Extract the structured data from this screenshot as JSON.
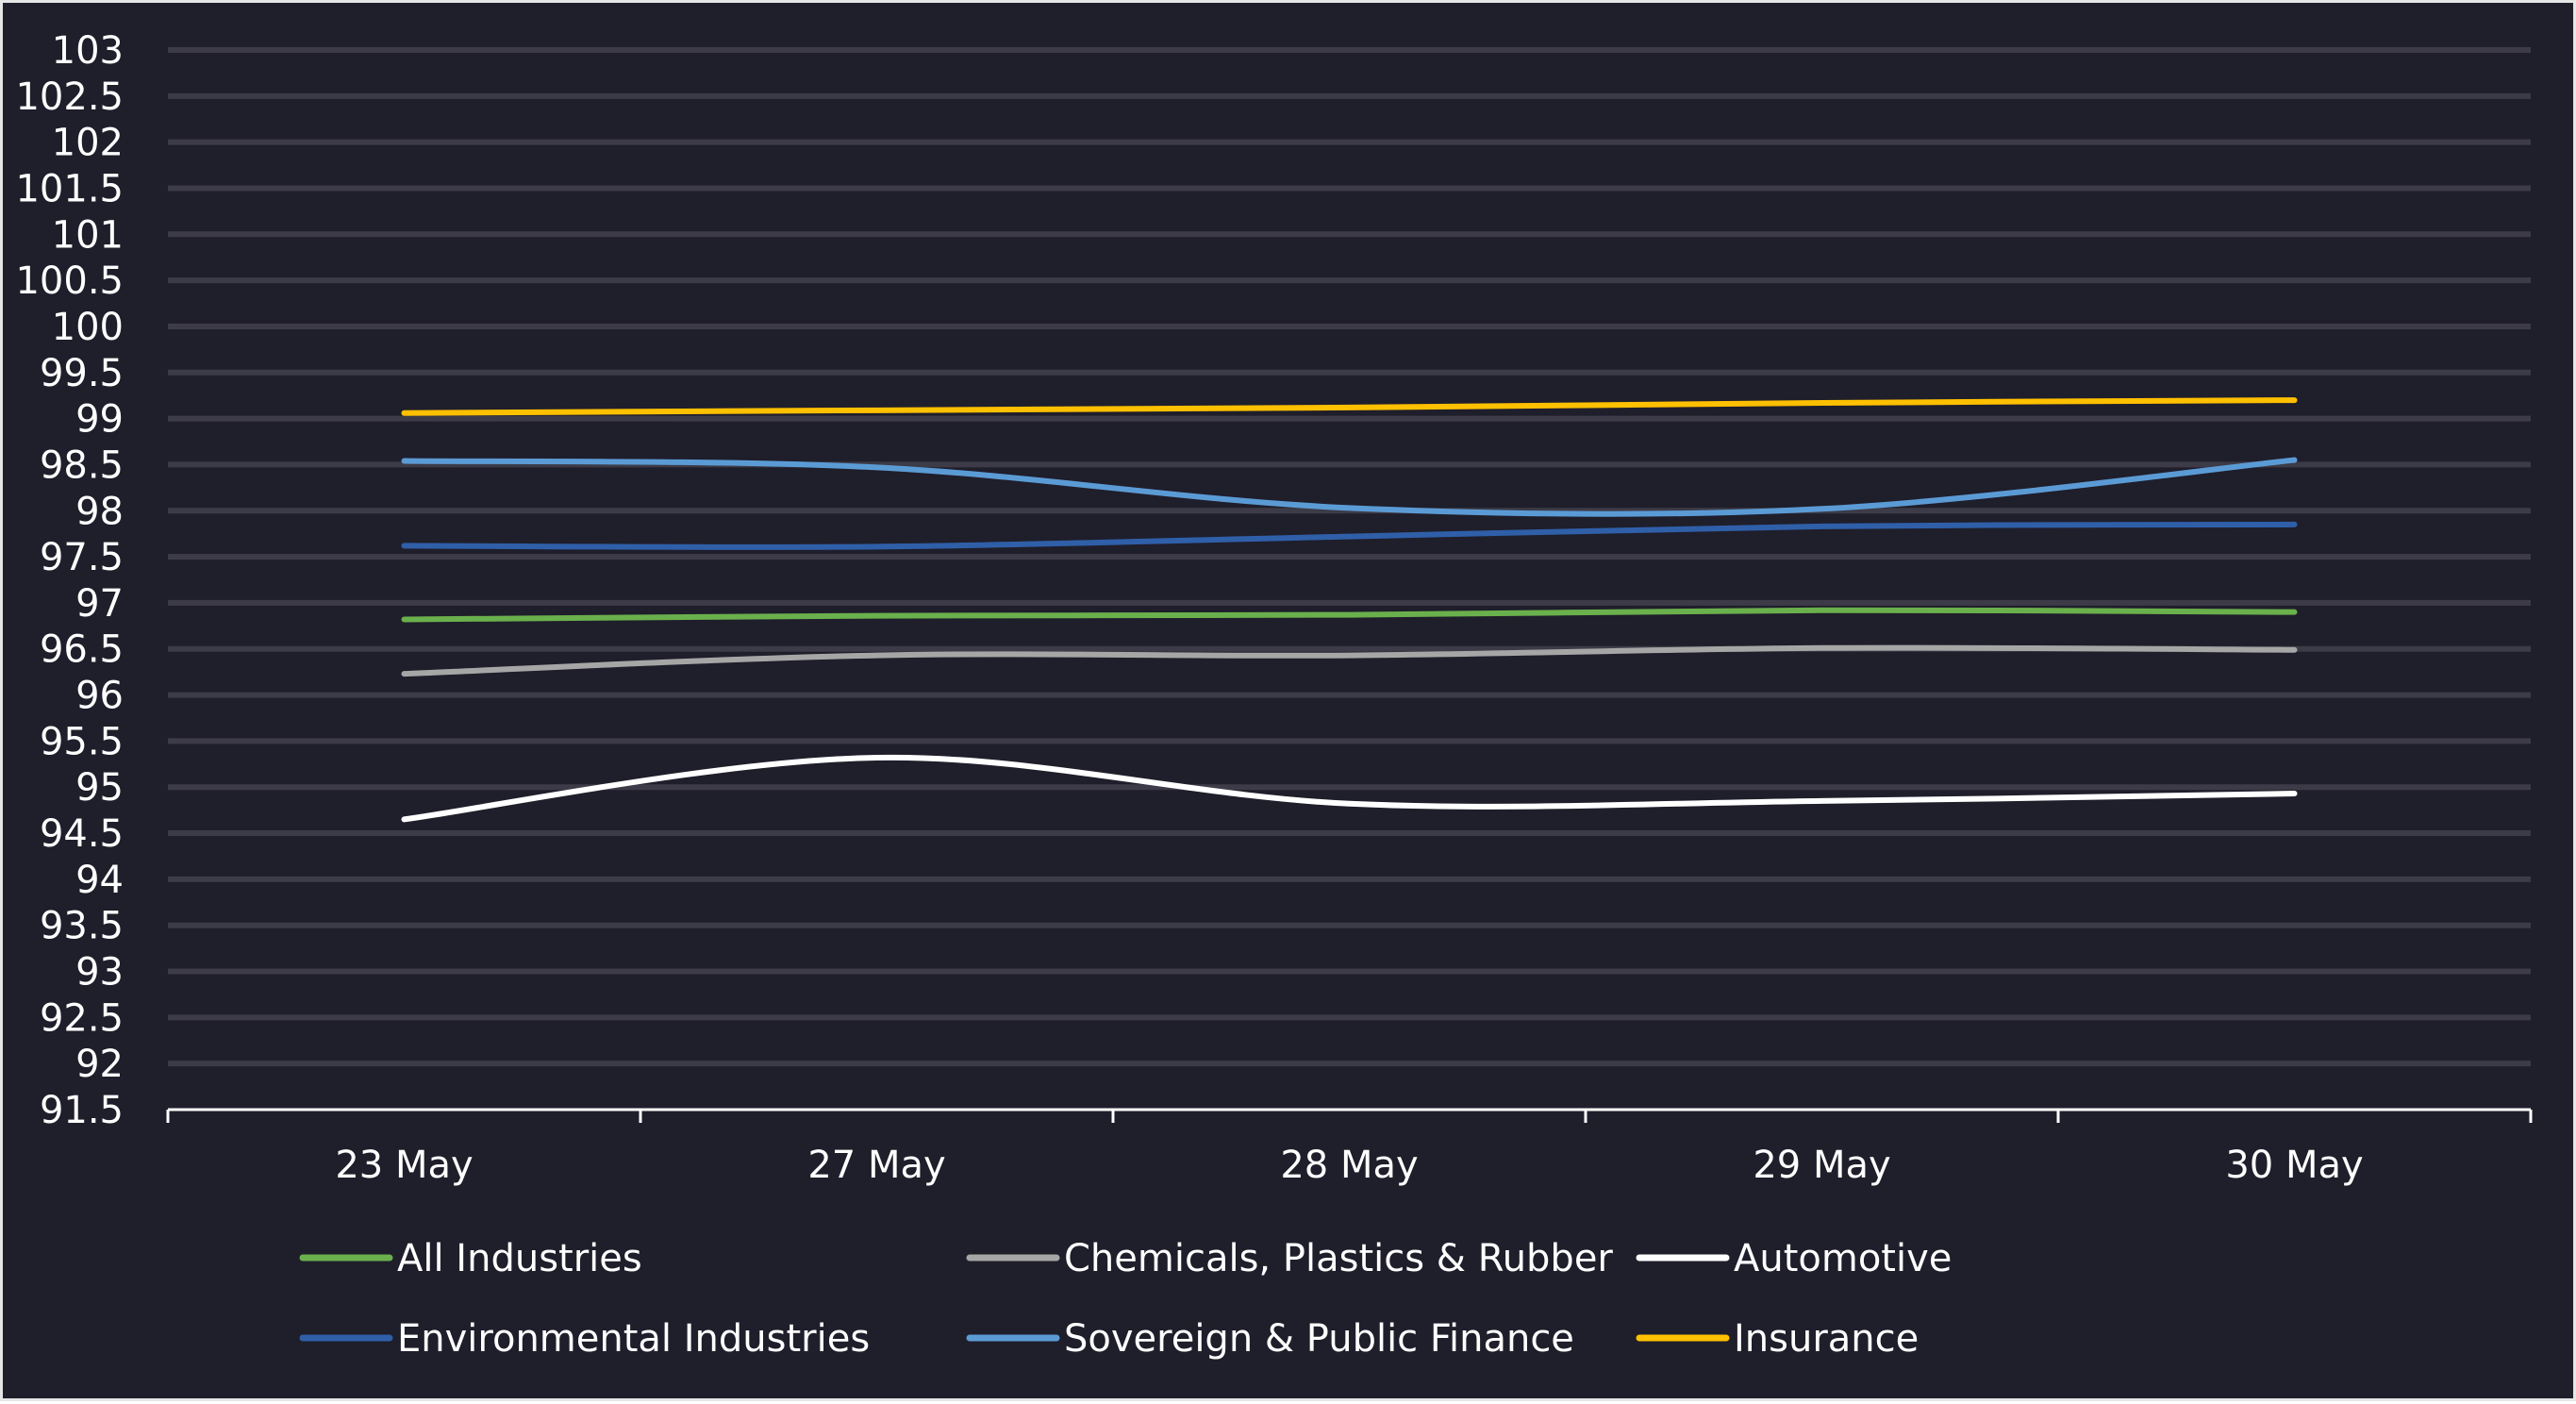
{
  "chart_data": {
    "type": "line",
    "title": "",
    "xlabel": "",
    "ylabel": "",
    "ylim": [
      91.5,
      103
    ],
    "yticks": [
      "103",
      "102.5",
      "102",
      "101.5",
      "101",
      "100.5",
      "100",
      "99.5",
      "99",
      "98.5",
      "98",
      "97.5",
      "97",
      "96.5",
      "96",
      "95.5",
      "95",
      "94.5",
      "94",
      "93.5",
      "93",
      "92.5",
      "92",
      "91.5"
    ],
    "ytick_values": [
      103,
      102.5,
      102,
      101.5,
      101,
      100.5,
      100,
      99.5,
      99,
      98.5,
      98,
      97.5,
      97,
      96.5,
      96,
      95.5,
      95,
      94.5,
      94,
      93.5,
      93,
      92.5,
      92,
      91.5
    ],
    "categories": [
      "23 May",
      "27 May",
      "28 May",
      "29 May",
      "30 May"
    ],
    "grid": true,
    "legend_position": "bottom",
    "series": [
      {
        "name": "All Industries",
        "color": "#6ab04c",
        "values": [
          96.82,
          96.86,
          96.87,
          96.92,
          96.9
        ]
      },
      {
        "name": "Chemicals, Plastics & Rubber",
        "color": "#a6a6a6",
        "values": [
          96.23,
          96.43,
          96.43,
          96.51,
          96.49
        ]
      },
      {
        "name": "Automotive",
        "color": "#ffffff",
        "values": [
          94.65,
          95.32,
          94.82,
          94.85,
          94.93
        ]
      },
      {
        "name": "Environmental Industries",
        "color": "#2f5fa8",
        "values": [
          97.62,
          97.61,
          97.72,
          97.83,
          97.85
        ]
      },
      {
        "name": "Sovereign & Public Finance",
        "color": "#5b9bd5",
        "values": [
          98.54,
          98.47,
          98.03,
          98.02,
          98.55
        ]
      },
      {
        "name": "Insurance",
        "color": "#ffc000",
        "values": [
          99.06,
          99.09,
          99.12,
          99.17,
          99.2
        ]
      }
    ]
  },
  "colors": {
    "background": "#1f1e2b",
    "gridline": "#3c3b47",
    "axis": "#ffffff",
    "text": "#ffffff"
  }
}
